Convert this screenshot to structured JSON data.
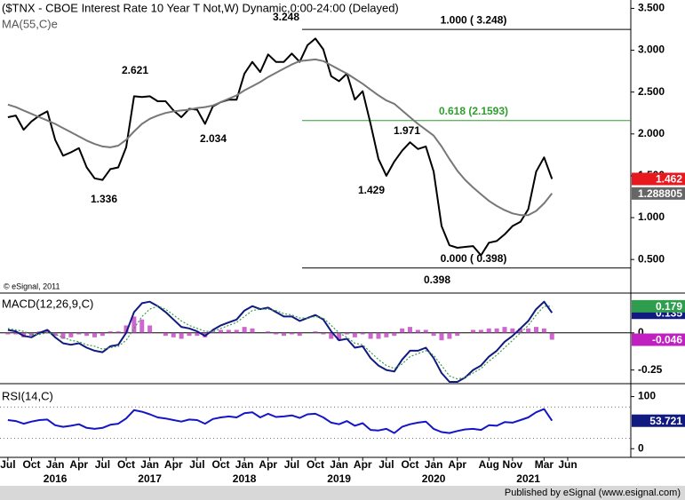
{
  "chart_data": {
    "type": "line",
    "title": "($TNX - CBOE Interest Rate 10 Year T Not,W) Dynamic,0:00-24:00 (Delayed)",
    "credit": "© eSignal, 2011",
    "footer": "Published by eSignal (www.esignal.com)",
    "xlim": [
      "2015-06",
      "2022-02"
    ],
    "x": [
      "2015-07",
      "2015-08",
      "2015-09",
      "2015-10",
      "2015-11",
      "2015-12",
      "2016-01",
      "2016-02",
      "2016-03",
      "2016-04",
      "2016-05",
      "2016-06",
      "2016-07",
      "2016-08",
      "2016-09",
      "2016-10",
      "2016-11",
      "2016-12",
      "2017-01",
      "2017-02",
      "2017-03",
      "2017-04",
      "2017-05",
      "2017-06",
      "2017-07",
      "2017-08",
      "2017-09",
      "2017-10",
      "2017-11",
      "2017-12",
      "2018-01",
      "2018-02",
      "2018-03",
      "2018-04",
      "2018-05",
      "2018-06",
      "2018-07",
      "2018-08",
      "2018-09",
      "2018-10",
      "2018-11",
      "2018-12",
      "2019-01",
      "2019-02",
      "2019-03",
      "2019-04",
      "2019-05",
      "2019-06",
      "2019-07",
      "2019-08",
      "2019-09",
      "2019-10",
      "2019-11",
      "2019-12",
      "2020-01",
      "2020-02",
      "2020-03",
      "2020-04",
      "2020-05",
      "2020-06",
      "2020-07",
      "2020-08",
      "2020-09",
      "2020-10",
      "2020-11",
      "2020-12",
      "2021-01",
      "2021-02",
      "2021-03",
      "2021-04"
    ],
    "xticks": [
      {
        "value": "2015-07",
        "label": "Jul"
      },
      {
        "value": "2015-10",
        "label": "Oct"
      },
      {
        "value": "2016-01",
        "label": "Jan"
      },
      {
        "value": "2016-04",
        "label": "Apr"
      },
      {
        "value": "2016-07",
        "label": "Jul"
      },
      {
        "value": "2016-10",
        "label": "Oct"
      },
      {
        "value": "2017-01",
        "label": "Jan"
      },
      {
        "value": "2017-04",
        "label": "Apr"
      },
      {
        "value": "2017-07",
        "label": "Jul"
      },
      {
        "value": "2017-10",
        "label": "Oct"
      },
      {
        "value": "2018-01",
        "label": "Jan"
      },
      {
        "value": "2018-04",
        "label": "Apr"
      },
      {
        "value": "2018-07",
        "label": "Jul"
      },
      {
        "value": "2018-10",
        "label": "Oct"
      },
      {
        "value": "2019-01",
        "label": "Jan"
      },
      {
        "value": "2019-04",
        "label": "Apr"
      },
      {
        "value": "2019-07",
        "label": "Jul"
      },
      {
        "value": "2019-10",
        "label": "Oct"
      },
      {
        "value": "2020-01",
        "label": "Jan"
      },
      {
        "value": "2020-04",
        "label": "Apr"
      },
      {
        "value": "2020-08",
        "label": "Aug"
      },
      {
        "value": "2020-11",
        "label": "Nov"
      },
      {
        "value": "2021-03",
        "label": "Mar"
      },
      {
        "value": "2021-06",
        "label": "Jun"
      }
    ],
    "year_labels": [
      {
        "value": "2016-01",
        "label": "2016"
      },
      {
        "value": "2017-01",
        "label": "2017"
      },
      {
        "value": "2018-01",
        "label": "2018"
      },
      {
        "value": "2019-01",
        "label": "2019"
      },
      {
        "value": "2020-01",
        "label": "2020"
      },
      {
        "value": "2021-01",
        "label": "2021"
      }
    ],
    "panels": [
      {
        "ylim": [
          0.12,
          3.6
        ],
        "yticks": [
          {
            "value": 0.5,
            "label": "0.500"
          },
          {
            "value": 1,
            "label": "1.000"
          },
          {
            "value": 1.5,
            "label": "1.500"
          },
          {
            "value": 2,
            "label": "2.000"
          },
          {
            "value": 2.5,
            "label": "2.500"
          },
          {
            "value": 3,
            "label": "3.000"
          },
          {
            "value": 3.5,
            "label": "3.500"
          }
        ],
        "fib_levels": [
          {
            "label": "1.000 ( 3.248)",
            "value": 3.248,
            "color": "#000000"
          },
          {
            "label": "0.618 (2.1593)",
            "value": 2.1593,
            "color": "#2e9e2e"
          },
          {
            "label": "0.000 ( 0.398)",
            "value": 0.398,
            "color": "#000000"
          }
        ],
        "pivot_labels": [
          3.248,
          2.621,
          2.034,
          1.336,
          1.429,
          1.971,
          0.398
        ],
        "series": [
          {
            "color": "#000000",
            "tag_color": "#e8191e",
            "values": [
              2.2,
              2.22,
              2.05,
              2.15,
              2.22,
              2.27,
              1.93,
              1.74,
              1.78,
              1.83,
              1.6,
              1.47,
              1.45,
              1.58,
              1.6,
              1.84,
              2.45,
              2.44,
              2.45,
              2.39,
              2.39,
              2.28,
              2.2,
              2.3,
              2.29,
              2.12,
              2.33,
              2.38,
              2.41,
              2.41,
              2.72,
              2.86,
              2.74,
              2.95,
              2.86,
              2.86,
              2.96,
              2.86,
              3.06,
              3.14,
              3.01,
              2.69,
              2.63,
              2.72,
              2.41,
              2.51,
              2.12,
              1.7,
              1.5,
              1.67,
              1.8,
              1.9,
              1.82,
              1.85,
              1.55,
              0.9,
              0.67,
              0.64,
              0.65,
              0.66,
              0.55,
              0.7,
              0.72,
              0.8,
              0.9,
              0.95,
              1.1,
              1.55,
              1.72,
              1.462
            ]
          },
          {
            "name": "MA(55,C)e",
            "color": "#777777",
            "tag_color": "#666666",
            "values": [
              2.35,
              2.32,
              2.28,
              2.24,
              2.2,
              2.16,
              2.12,
              2.07,
              2.02,
              1.97,
              1.92,
              1.88,
              1.85,
              1.84,
              1.86,
              1.93,
              2.03,
              2.12,
              2.18,
              2.22,
              2.25,
              2.27,
              2.28,
              2.29,
              2.31,
              2.32,
              2.34,
              2.38,
              2.42,
              2.46,
              2.52,
              2.57,
              2.62,
              2.68,
              2.73,
              2.78,
              2.83,
              2.87,
              2.88,
              2.89,
              2.87,
              2.82,
              2.77,
              2.72,
              2.66,
              2.6,
              2.53,
              2.46,
              2.4,
              2.36,
              2.28,
              2.2,
              2.12,
              2.05,
              1.98,
              1.85,
              1.7,
              1.56,
              1.45,
              1.36,
              1.28,
              1.2,
              1.14,
              1.09,
              1.05,
              1.03,
              1.03,
              1.08,
              1.17,
              1.288805
            ]
          }
        ]
      },
      {
        "label": "MACD(12,26,9,C)",
        "ylim": [
          -0.33,
          0.25
        ],
        "yticks": [
          -0.25,
          0
        ],
        "series": [
          {
            "type": "bar",
            "color": "#c040c0",
            "tag_color": "#c020c0",
            "values": [
              -0.01,
              -0.01,
              -0.03,
              -0.02,
              0.01,
              0.02,
              -0.02,
              -0.04,
              -0.03,
              -0.01,
              -0.02,
              -0.03,
              -0.02,
              0.01,
              0.01,
              0.05,
              0.11,
              0.09,
              0.05,
              0.0,
              -0.02,
              -0.03,
              -0.04,
              -0.02,
              -0.02,
              -0.03,
              0.01,
              0.02,
              0.02,
              0.02,
              0.04,
              0.03,
              0.0,
              0.01,
              -0.01,
              -0.02,
              -0.01,
              -0.02,
              0.0,
              0.01,
              -0.01,
              -0.04,
              -0.05,
              -0.01,
              -0.03,
              -0.01,
              -0.04,
              -0.04,
              -0.03,
              -0.02,
              0.03,
              0.04,
              0.02,
              0.02,
              -0.02,
              -0.05,
              -0.04,
              -0.02,
              0.0,
              0.02,
              0.02,
              0.03,
              0.03,
              0.04,
              0.03,
              0.03,
              0.03,
              0.04,
              0.03,
              -0.046
            ]
          },
          {
            "color": "#101a80",
            "tag_color": "#101a80",
            "values": [
              0.02,
              0.01,
              -0.02,
              -0.03,
              0.0,
              0.02,
              -0.03,
              -0.07,
              -0.08,
              -0.07,
              -0.1,
              -0.12,
              -0.13,
              -0.09,
              -0.08,
              0.0,
              0.14,
              0.2,
              0.21,
              0.18,
              0.14,
              0.09,
              0.04,
              0.03,
              0.01,
              -0.02,
              0.02,
              0.05,
              0.07,
              0.09,
              0.15,
              0.18,
              0.16,
              0.17,
              0.14,
              0.11,
              0.11,
              0.08,
              0.1,
              0.12,
              0.09,
              0.01,
              -0.05,
              -0.04,
              -0.1,
              -0.09,
              -0.17,
              -0.22,
              -0.25,
              -0.26,
              -0.18,
              -0.12,
              -0.12,
              -0.1,
              -0.17,
              -0.27,
              -0.33,
              -0.33,
              -0.3,
              -0.25,
              -0.22,
              -0.16,
              -0.12,
              -0.06,
              -0.02,
              0.03,
              0.08,
              0.16,
              0.21,
              0.135
            ]
          },
          {
            "color": "#3a9a4a",
            "tag_color": "#2e9e4e",
            "style": "dotted",
            "values": [
              0.03,
              0.02,
              0.01,
              -0.01,
              -0.01,
              0.0,
              -0.01,
              -0.03,
              -0.05,
              -0.06,
              -0.08,
              -0.09,
              -0.11,
              -0.1,
              -0.09,
              -0.05,
              0.03,
              0.11,
              0.16,
              0.18,
              0.16,
              0.12,
              0.08,
              0.05,
              0.03,
              0.01,
              0.01,
              0.03,
              0.05,
              0.07,
              0.11,
              0.15,
              0.16,
              0.16,
              0.15,
              0.13,
              0.12,
              0.1,
              0.1,
              0.11,
              0.1,
              0.05,
              0.0,
              -0.03,
              -0.07,
              -0.08,
              -0.13,
              -0.18,
              -0.22,
              -0.24,
              -0.21,
              -0.16,
              -0.14,
              -0.12,
              -0.15,
              -0.22,
              -0.29,
              -0.31,
              -0.3,
              -0.27,
              -0.24,
              -0.19,
              -0.15,
              -0.1,
              -0.05,
              0.0,
              0.05,
              0.12,
              0.18,
              0.179
            ]
          }
        ]
      },
      {
        "label": "RSI(14,C)",
        "ylim": [
          -11.5,
          119.7
        ],
        "yticks": [
          0,
          100
        ],
        "levels": [
          20,
          80
        ],
        "series": [
          {
            "color": "#1414c8",
            "tag_color": "#101a80",
            "values": [
              55,
              53,
              48,
              52,
              55,
              56,
              45,
              42,
              44,
              47,
              40,
              38,
              40,
              46,
              48,
              58,
              74,
              71,
              66,
              60,
              58,
              55,
              52,
              56,
              55,
              48,
              57,
              60,
              62,
              60,
              68,
              70,
              60,
              67,
              61,
              62,
              64,
              59,
              66,
              67,
              60,
              50,
              47,
              53,
              44,
              49,
              36,
              35,
              38,
              30,
              42,
              47,
              50,
              52,
              38,
              32,
              30,
              34,
              37,
              38,
              36,
              45,
              44,
              51,
              50,
              55,
              60,
              70,
              76,
              53.721
            ]
          }
        ]
      }
    ]
  }
}
